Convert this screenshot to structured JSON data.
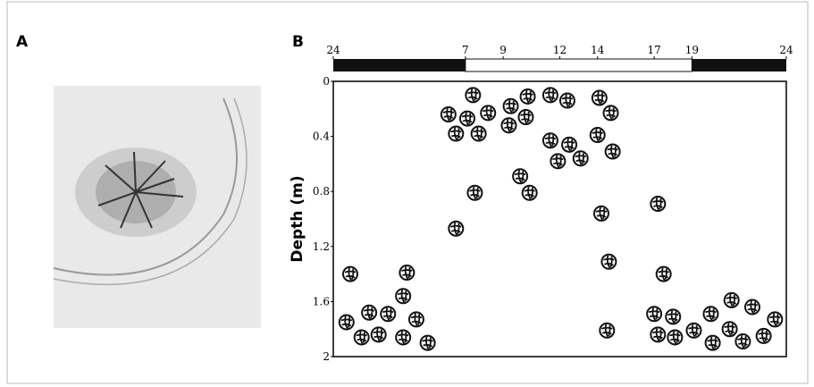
{
  "panels": {
    "a_label": "A",
    "b_label": "B"
  },
  "chart_data": {
    "type": "scatter",
    "y_label": "Depth (m)",
    "xlim": [
      0,
      24
    ],
    "xticks": [
      {
        "value": 0,
        "label": "24"
      },
      7,
      9,
      12,
      14,
      17,
      19,
      24
    ],
    "light_period": [
      7,
      19
    ],
    "ylim": [
      0,
      2
    ],
    "y_inverted": true,
    "yticks": [
      0,
      0.4,
      0.8,
      1.2,
      1.6,
      2
    ],
    "color": "#111111",
    "x": [
      0.9,
      0.7,
      1.5,
      1.9,
      2.4,
      2.9,
      3.7,
      3.9,
      4.4,
      3.7,
      5.0,
      6.5,
      6.1,
      6.5,
      7.1,
      7.4,
      7.7,
      8.2,
      7.5,
      9.4,
      10.3,
      9.3,
      10.2,
      9.9,
      10.4,
      11.5,
      12.4,
      11.5,
      12.5,
      11.9,
      13.1,
      14.1,
      14.7,
      14.0,
      14.8,
      14.2,
      14.6,
      14.5,
      17.2,
      17.5,
      17.0,
      18.0,
      17.2,
      18.1,
      19.1,
      20.0,
      21.1,
      20.1,
      21.0,
      21.7,
      22.2,
      22.8,
      23.4
    ],
    "values": [
      1.4,
      1.75,
      1.86,
      1.68,
      1.84,
      1.69,
      1.56,
      1.39,
      1.73,
      1.86,
      1.9,
      1.07,
      0.24,
      0.38,
      0.27,
      0.1,
      0.38,
      0.23,
      0.81,
      0.18,
      0.11,
      0.32,
      0.26,
      0.69,
      0.81,
      0.1,
      0.14,
      0.43,
      0.46,
      0.58,
      0.56,
      0.12,
      0.23,
      0.39,
      0.51,
      0.96,
      1.31,
      1.81,
      0.89,
      1.4,
      1.69,
      1.71,
      1.84,
      1.86,
      1.81,
      1.69,
      1.59,
      1.9,
      1.8,
      1.89,
      1.64,
      1.85,
      1.73
    ]
  }
}
